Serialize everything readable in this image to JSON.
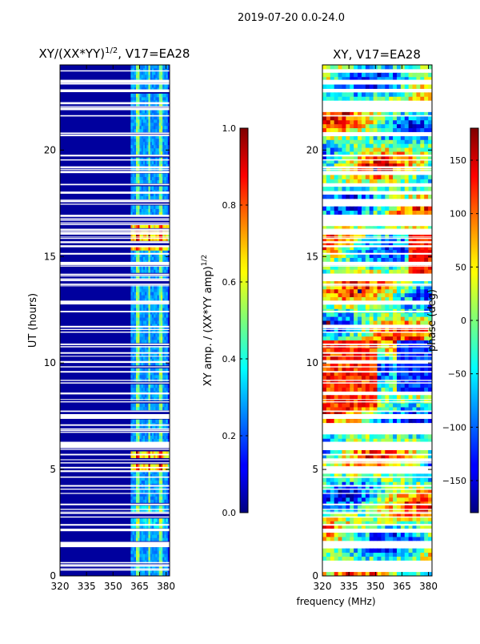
{
  "suptitle": "2019-07-20 0.0-24.0",
  "chart_data": [
    {
      "type": "heatmap",
      "title": "XY/(XX*YY)^1/2, V17=EA28",
      "title_main": "XY/(XX*YY)",
      "title_exp": "1/2",
      "title_tail": ", V17=EA28",
      "xlabel": "",
      "ylabel": "UT (hours)",
      "xlim": [
        320,
        382
      ],
      "ylim": [
        0,
        24
      ],
      "xticks": [
        "320",
        "335",
        "350",
        "365",
        "380"
      ],
      "xtick_values": [
        320,
        335,
        350,
        365,
        380
      ],
      "yticks": [
        "0",
        "5",
        "10",
        "15",
        "20"
      ],
      "ytick_values": [
        0,
        5,
        10,
        15,
        20
      ],
      "colormap": "jet",
      "colorbar": {
        "label": "XY amp. / (XX*YY amp)^1/2",
        "label_main": "XY amp. / (XX*YY amp)",
        "label_exp": "1/2",
        "range": [
          0.0,
          1.0
        ],
        "ticks": [
          "0.0",
          "0.2",
          "0.4",
          "0.6",
          "0.8",
          "1.0"
        ],
        "tick_values": [
          0.0,
          0.2,
          0.4,
          0.6,
          0.8,
          1.0
        ]
      }
    },
    {
      "type": "heatmap",
      "title": "XY, V17=EA28",
      "xlabel": "frequency (MHz)",
      "ylabel": "",
      "xlim": [
        320,
        382
      ],
      "ylim": [
        0,
        24
      ],
      "xticks": [
        "320",
        "335",
        "350",
        "365",
        "380"
      ],
      "xtick_values": [
        320,
        335,
        350,
        365,
        380
      ],
      "yticks": [
        "0",
        "5",
        "10",
        "15",
        "20"
      ],
      "ytick_values": [
        0,
        5,
        10,
        15,
        20
      ],
      "colormap": "jet",
      "colorbar": {
        "label": "phase (deg)",
        "range": [
          -180,
          180
        ],
        "ticks": [
          "−150",
          "−100",
          "−50",
          "0",
          "50",
          "100",
          "150"
        ],
        "tick_values": [
          -150,
          -100,
          -50,
          0,
          50,
          100,
          150
        ]
      }
    }
  ]
}
